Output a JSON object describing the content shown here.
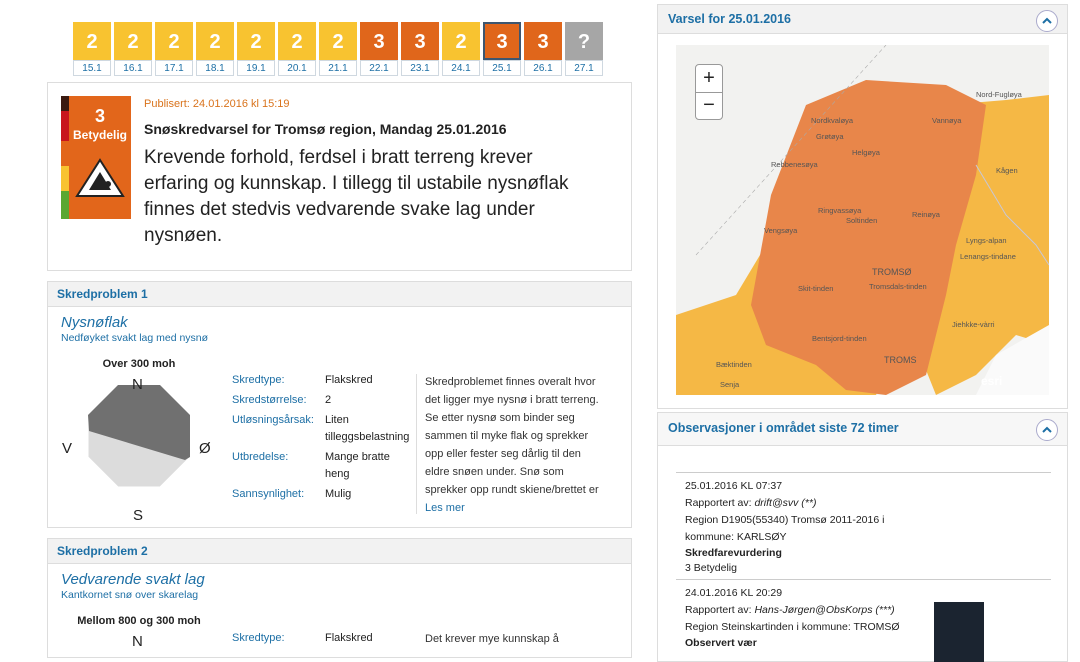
{
  "days": [
    {
      "level": "2",
      "date": "15.1",
      "color": "#f8c330"
    },
    {
      "level": "2",
      "date": "16.1",
      "color": "#f8c330"
    },
    {
      "level": "2",
      "date": "17.1",
      "color": "#f8c330"
    },
    {
      "level": "2",
      "date": "18.1",
      "color": "#f8c330"
    },
    {
      "level": "2",
      "date": "19.1",
      "color": "#f8c330"
    },
    {
      "level": "2",
      "date": "20.1",
      "color": "#f8c330"
    },
    {
      "level": "2",
      "date": "21.1",
      "color": "#f8c330"
    },
    {
      "level": "3",
      "date": "22.1",
      "color": "#e0661b"
    },
    {
      "level": "3",
      "date": "23.1",
      "color": "#e0661b"
    },
    {
      "level": "2",
      "date": "24.1",
      "color": "#f8c330"
    },
    {
      "level": "3",
      "date": "25.1",
      "color": "#e0661b",
      "selected": true
    },
    {
      "level": "3",
      "date": "26.1",
      "color": "#e0661b"
    },
    {
      "level": "?",
      "date": "27.1",
      "color": "#a6a6a6"
    }
  ],
  "warning": {
    "published": "Publisert: 24.01.2016 kl 15:19",
    "badge_level": "3",
    "badge_label": "Betydelig",
    "title": "Snøskredvarsel for Tromsø region, Mandag 25.01.2016",
    "text": "Krevende forhold, ferdsel i bratt terreng krever erfaring og kunnskap. I tillegg til ustabile nysnøflak finnes det stedvis vedvarende svake lag under nysnøen."
  },
  "problems": [
    {
      "header": "Skredproblem 1",
      "name": "Nysnøflak",
      "subtitle": "Nedføyket svakt lag med nysnø",
      "elevation": "Over 300 moh",
      "compass": {
        "n": "N",
        "e": "Ø",
        "s": "S",
        "w": "V"
      },
      "properties": [
        {
          "label": "Skredtype:",
          "value": "Flakskred"
        },
        {
          "label": "Skredstørrelse:",
          "value": "2"
        },
        {
          "label": "Utløsningsårsak:",
          "value": "Liten tilleggsbelastning"
        },
        {
          "label": "Utbredelse:",
          "value": "Mange bratte heng"
        },
        {
          "label": "Sannsynlighet:",
          "value": "Mulig"
        }
      ],
      "description": "Skredproblemet finnes overalt hvor det ligger mye nysnø i bratt terreng. Se etter nysnø som binder seg sammen til myke flak og sprekker opp eller fester seg dårlig til den eldre snøen under. Snø som sprekker opp rundt skiene/brettet er",
      "link": "Les mer"
    },
    {
      "header": "Skredproblem 2",
      "name": "Vedvarende svakt lag",
      "subtitle": "Kantkornet snø over skarelag",
      "elevation": "Mellom 800 og 300 moh",
      "compass": {
        "n": "N"
      },
      "properties": [
        {
          "label": "Skredtype:",
          "value": "Flakskred"
        }
      ],
      "description": "Det krever mye kunnskap å"
    }
  ],
  "map": {
    "title": "Varsel for 25.01.2016",
    "zoom_in": "+",
    "zoom_out": "−",
    "places": [
      "Nord-Fugløya",
      "Vannøya",
      "Nordkvaløya",
      "Grøtøya",
      "Helgøya",
      "Rebbenesøya",
      "Kågen",
      "Ringvassøya",
      "Soltinden",
      "Reinøya",
      "Vengsøya",
      "Lyngs-alpan",
      "Lenangs-tindane",
      "TROMSØ",
      "Tromsdals-tinden",
      "Skit-tinden",
      "Jiehkke-vàrri",
      "Bentsjord-tinden",
      "Bæktinden",
      "TROMS",
      "Senja",
      "esri"
    ]
  },
  "observations": {
    "title": "Observasjoner i området siste 72 timer",
    "entries": [
      {
        "date": "25.01.2016 KL 07:37",
        "reported_label": "Rapportert av:",
        "reporter": "drift@svv (**)",
        "region": "Region D1905(55340) Tromsø 2011-2016 i kommune: KARLSØY",
        "type": "Skredfarevurdering",
        "detail": "3 Betydelig"
      },
      {
        "date": "24.01.2016 KL 20:29",
        "reported_label": "Rapportert av:",
        "reporter": "Hans-Jørgen@ObsKorps (***)",
        "region": "Region Steinskartinden i kommune: TROMSØ",
        "type": "Observert vær"
      }
    ]
  }
}
